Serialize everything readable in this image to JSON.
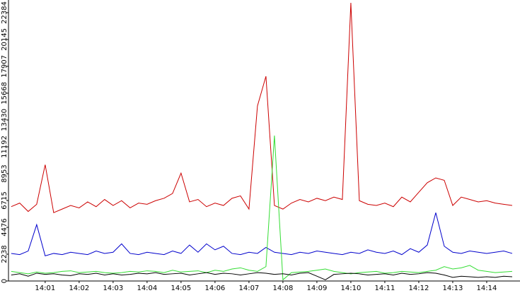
{
  "chart_data": {
    "type": "line",
    "x": [
      0,
      0.25,
      0.5,
      0.75,
      1,
      1.25,
      1.5,
      1.75,
      2,
      2.25,
      2.5,
      2.75,
      3,
      3.25,
      3.5,
      3.75,
      4,
      4.25,
      4.5,
      4.75,
      5,
      5.25,
      5.5,
      5.75,
      6,
      6.25,
      6.5,
      6.75,
      7,
      7.25,
      7.5,
      7.75,
      8,
      8.25,
      8.5,
      8.75,
      9,
      9.25,
      9.5,
      9.75,
      10,
      10.25,
      10.5,
      10.75,
      11,
      11.25,
      11.5,
      11.75,
      12,
      12.25,
      12.5,
      12.75,
      13,
      13.25,
      13.5,
      13.75,
      14,
      14.25,
      14.5,
      14.75
    ],
    "series": [
      {
        "color": "#cc0000",
        "values": [
          6200,
          6500,
          5800,
          6400,
          9700,
          5700,
          6000,
          6300,
          6100,
          6600,
          6200,
          6800,
          6300,
          6700,
          6100,
          6500,
          6400,
          6700,
          6900,
          7300,
          9000,
          6600,
          6800,
          6200,
          6500,
          6300,
          6900,
          7100,
          6000,
          14600,
          17080,
          6300,
          6000,
          6500,
          6800,
          6600,
          6900,
          6700,
          7000,
          6800,
          23200,
          6700,
          6400,
          6300,
          6500,
          6200,
          7000,
          6600,
          7400,
          8200,
          8600,
          8400,
          6300,
          7000,
          6800,
          6600,
          6700,
          6500,
          6400,
          6300
        ]
      },
      {
        "color": "#0000cc",
        "values": [
          2300,
          2200,
          2500,
          4700,
          2100,
          2300,
          2200,
          2400,
          2300,
          2200,
          2500,
          2300,
          2400,
          3100,
          2300,
          2200,
          2400,
          2300,
          2200,
          2500,
          2300,
          3000,
          2400,
          3100,
          2600,
          2900,
          2300,
          2200,
          2400,
          2300,
          2800,
          2400,
          2300,
          2200,
          2400,
          2300,
          2500,
          2400,
          2300,
          2200,
          2400,
          2300,
          2600,
          2400,
          2300,
          2500,
          2200,
          2700,
          2400,
          3000,
          5700,
          2900,
          2400,
          2300,
          2500,
          2400,
          2300,
          2400,
          2500,
          2300
        ]
      },
      {
        "color": "#33dd33",
        "values": [
          800,
          700,
          600,
          750,
          650,
          700,
          800,
          850,
          700,
          750,
          800,
          700,
          650,
          700,
          800,
          750,
          850,
          800,
          700,
          900,
          750,
          800,
          850,
          700,
          900,
          800,
          1000,
          1100,
          900,
          800,
          1200,
          12130,
          100,
          700,
          750,
          800,
          900,
          1000,
          800,
          700,
          600,
          700,
          750,
          800,
          650,
          700,
          800,
          750,
          700,
          800,
          900,
          1200,
          1000,
          1100,
          1300,
          900,
          800,
          700,
          750,
          800
        ]
      },
      {
        "color": "#000000",
        "values": [
          500,
          600,
          400,
          650,
          550,
          600,
          500,
          450,
          600,
          550,
          650,
          500,
          600,
          500,
          550,
          650,
          600,
          700,
          550,
          600,
          650,
          500,
          600,
          700,
          550,
          650,
          600,
          500,
          600,
          700,
          650,
          550,
          600,
          500,
          650,
          700,
          400,
          100,
          550,
          600,
          650,
          600,
          500,
          550,
          600,
          500,
          650,
          550,
          600,
          700,
          650,
          500,
          300,
          400,
          350,
          300,
          350,
          300,
          400,
          350
        ]
      }
    ],
    "xlim": [
      -0.08,
      14.98
    ],
    "xticks": [
      {
        "value": 1,
        "label": "14:01"
      },
      {
        "value": 2,
        "label": "14:02"
      },
      {
        "value": 3,
        "label": "14:03"
      },
      {
        "value": 4,
        "label": "14:04"
      },
      {
        "value": 5,
        "label": "14:05"
      },
      {
        "value": 6,
        "label": "14:06"
      },
      {
        "value": 7,
        "label": "14:07"
      },
      {
        "value": 8,
        "label": "14:08"
      },
      {
        "value": 9,
        "label": "14:09"
      },
      {
        "value": 10,
        "label": "14:10"
      },
      {
        "value": 11,
        "label": "14:11"
      },
      {
        "value": 12,
        "label": "14:12"
      },
      {
        "value": 13,
        "label": "14:13"
      },
      {
        "value": 14,
        "label": "14:14"
      }
    ],
    "ylim": [
      0,
      23440
    ],
    "yticks": [
      0,
      2238,
      4476,
      6715,
      8953,
      11192,
      13430,
      15668,
      17907,
      20145,
      22384
    ],
    "grid": false
  }
}
